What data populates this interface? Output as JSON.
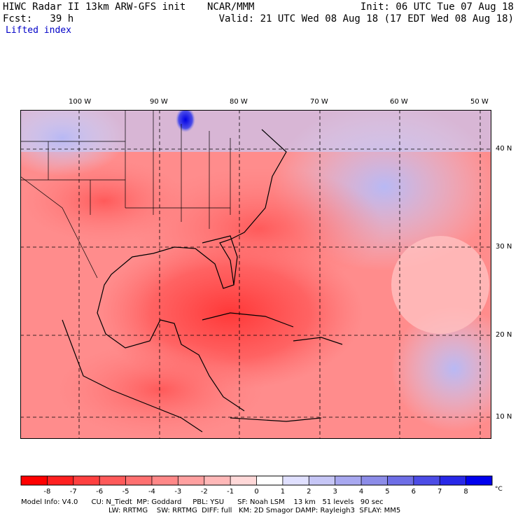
{
  "header": {
    "title": "HIWC Radar II 13km ARW-GFS init",
    "org": "NCAR/MMM",
    "init": "Init: 06 UTC Tue 07 Aug 18",
    "forecast": "Fcst:   39 h",
    "valid": "Valid: 21 UTC Wed 08 Aug 18 (17 EDT Wed 08 Aug 18)",
    "field": "Lifted index"
  },
  "map": {
    "lon_labels": [
      "100 W",
      "90 W",
      "80 W",
      "70 W",
      "60 W",
      "50 W"
    ],
    "lat_labels": [
      "40 N",
      "30 N",
      "20 N",
      "10 N"
    ],
    "lons": [
      -100,
      -90,
      -80,
      -70,
      -60,
      -50
    ],
    "lats": [
      40,
      30,
      20,
      10
    ],
    "lon_range": [
      -107,
      -49
    ],
    "lat_range": [
      8,
      45
    ]
  },
  "colorbar": {
    "ticks": [
      "-8",
      "-7",
      "-6",
      "-5",
      "-4",
      "-3",
      "-2",
      "-1",
      "0",
      "1",
      "2",
      "3",
      "4",
      "5",
      "6",
      "7",
      "8"
    ],
    "unit": "°C",
    "colors": [
      "#ff0000",
      "#ff2020",
      "#ff4040",
      "#ff5a5a",
      "#ff7070",
      "#ff8888",
      "#ffa0a0",
      "#ffb8b8",
      "#ffd8d8",
      "#ffffff",
      "#e0e0ff",
      "#c6c6f6",
      "#a8a8f0",
      "#8c8ce8",
      "#6e6ee6",
      "#4c4ce6",
      "#2828e8",
      "#0000ee"
    ]
  },
  "footer": {
    "line1": "Model Info: V4.0      CU: N_Tiedt  MP: Goddard     PBL: YSU      SF: Noah LSM    13 km   51 levels   90 sec",
    "line2": "LW: RRTMG    SW: RRTMG  DIFF: full   KM: 2D Smagor DAMP: Rayleigh3  SFLAY: MM5"
  }
}
